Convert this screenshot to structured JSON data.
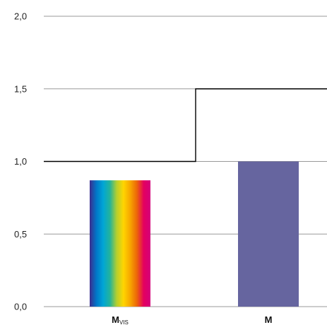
{
  "chart_data": {
    "type": "bar",
    "title": "",
    "xlabel": "",
    "ylabel": "",
    "ylim": [
      0,
      2.0
    ],
    "y_ticks": [
      {
        "value": 0.0,
        "label": "0,0"
      },
      {
        "value": 0.5,
        "label": "0,5"
      },
      {
        "value": 1.0,
        "label": "1,0"
      },
      {
        "value": 1.5,
        "label": "1,5"
      },
      {
        "value": 2.0,
        "label": "2,0"
      }
    ],
    "grid": true,
    "categories": [
      {
        "main": "M",
        "sub": "VIS"
      },
      {
        "main": "M",
        "sub": ""
      }
    ],
    "values": [
      0.87,
      1.0
    ],
    "bar_fills": [
      "spectrum",
      "#66659f"
    ],
    "spectrum_colors": [
      "#3b2d8f",
      "#0077c8",
      "#00a6d6",
      "#23b39a",
      "#b5cf2e",
      "#ffd500",
      "#f7a600",
      "#ec6608",
      "#e4005f",
      "#d4007a"
    ],
    "threshold_line": {
      "segments": [
        {
          "category_index": 0,
          "value": 1.0
        },
        {
          "category_index": 1,
          "value": 1.5
        }
      ],
      "color": "#000000"
    },
    "grid_color": "#9a9a9a"
  }
}
